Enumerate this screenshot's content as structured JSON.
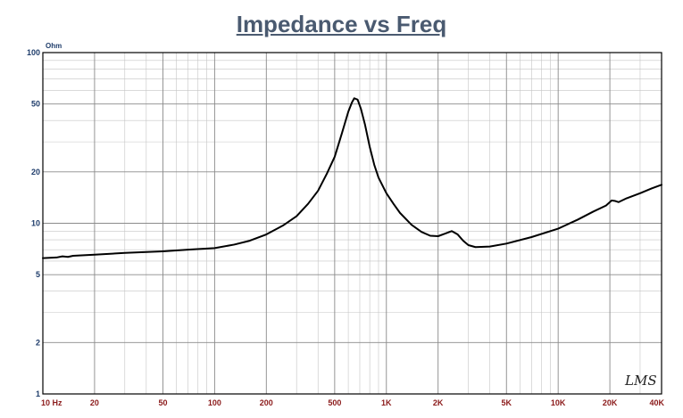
{
  "chart_data": {
    "type": "line",
    "title": "Impedance vs Freq",
    "ylabel": "Ohm",
    "xscale": "log",
    "yscale": "log",
    "xlim": [
      10,
      40000
    ],
    "ylim": [
      1,
      100
    ],
    "grid": true,
    "y_ticks": [
      {
        "value": 100,
        "label": "100"
      },
      {
        "value": 50,
        "label": "50"
      },
      {
        "value": 20,
        "label": "20"
      },
      {
        "value": 10,
        "label": "10"
      },
      {
        "value": 5,
        "label": "5"
      },
      {
        "value": 2,
        "label": "2"
      },
      {
        "value": 1,
        "label": "1"
      }
    ],
    "x_ticks": [
      {
        "value": 10,
        "label": "10  Hz"
      },
      {
        "value": 20,
        "label": "20"
      },
      {
        "value": 50,
        "label": "50"
      },
      {
        "value": 100,
        "label": "100"
      },
      {
        "value": 200,
        "label": "200"
      },
      {
        "value": 500,
        "label": "500"
      },
      {
        "value": 1000,
        "label": "1K"
      },
      {
        "value": 2000,
        "label": "2K"
      },
      {
        "value": 5000,
        "label": "5K"
      },
      {
        "value": 10000,
        "label": "10K"
      },
      {
        "value": 20000,
        "label": "20K"
      },
      {
        "value": 40000,
        "label": "40K"
      }
    ],
    "series": [
      {
        "color": "#000000",
        "points": [
          [
            10,
            6.25
          ],
          [
            12,
            6.3
          ],
          [
            13,
            6.4
          ],
          [
            14,
            6.35
          ],
          [
            15,
            6.45
          ],
          [
            20,
            6.55
          ],
          [
            30,
            6.7
          ],
          [
            50,
            6.85
          ],
          [
            70,
            7.0
          ],
          [
            100,
            7.15
          ],
          [
            130,
            7.5
          ],
          [
            160,
            7.9
          ],
          [
            200,
            8.6
          ],
          [
            250,
            9.7
          ],
          [
            300,
            11.0
          ],
          [
            350,
            13.0
          ],
          [
            400,
            15.5
          ],
          [
            450,
            19.5
          ],
          [
            500,
            24.5
          ],
          [
            550,
            33.5
          ],
          [
            600,
            45.0
          ],
          [
            630,
            51.0
          ],
          [
            650,
            54.0
          ],
          [
            680,
            53.0
          ],
          [
            710,
            47.0
          ],
          [
            750,
            38.0
          ],
          [
            800,
            28.0
          ],
          [
            850,
            22.0
          ],
          [
            900,
            18.5
          ],
          [
            1000,
            15.0
          ],
          [
            1100,
            13.0
          ],
          [
            1200,
            11.5
          ],
          [
            1400,
            9.8
          ],
          [
            1600,
            8.9
          ],
          [
            1800,
            8.45
          ],
          [
            2000,
            8.4
          ],
          [
            2200,
            8.7
          ],
          [
            2400,
            9.0
          ],
          [
            2600,
            8.6
          ],
          [
            2800,
            7.9
          ],
          [
            3000,
            7.45
          ],
          [
            3300,
            7.25
          ],
          [
            4000,
            7.3
          ],
          [
            5000,
            7.6
          ],
          [
            7000,
            8.3
          ],
          [
            10000,
            9.3
          ],
          [
            13000,
            10.5
          ],
          [
            16000,
            11.7
          ],
          [
            19000,
            12.7
          ],
          [
            20500,
            13.6
          ],
          [
            21500,
            13.5
          ],
          [
            22500,
            13.3
          ],
          [
            25000,
            14.0
          ],
          [
            30000,
            15.0
          ],
          [
            35000,
            16.0
          ],
          [
            40000,
            16.8
          ]
        ]
      }
    ],
    "watermark": "LMS"
  }
}
